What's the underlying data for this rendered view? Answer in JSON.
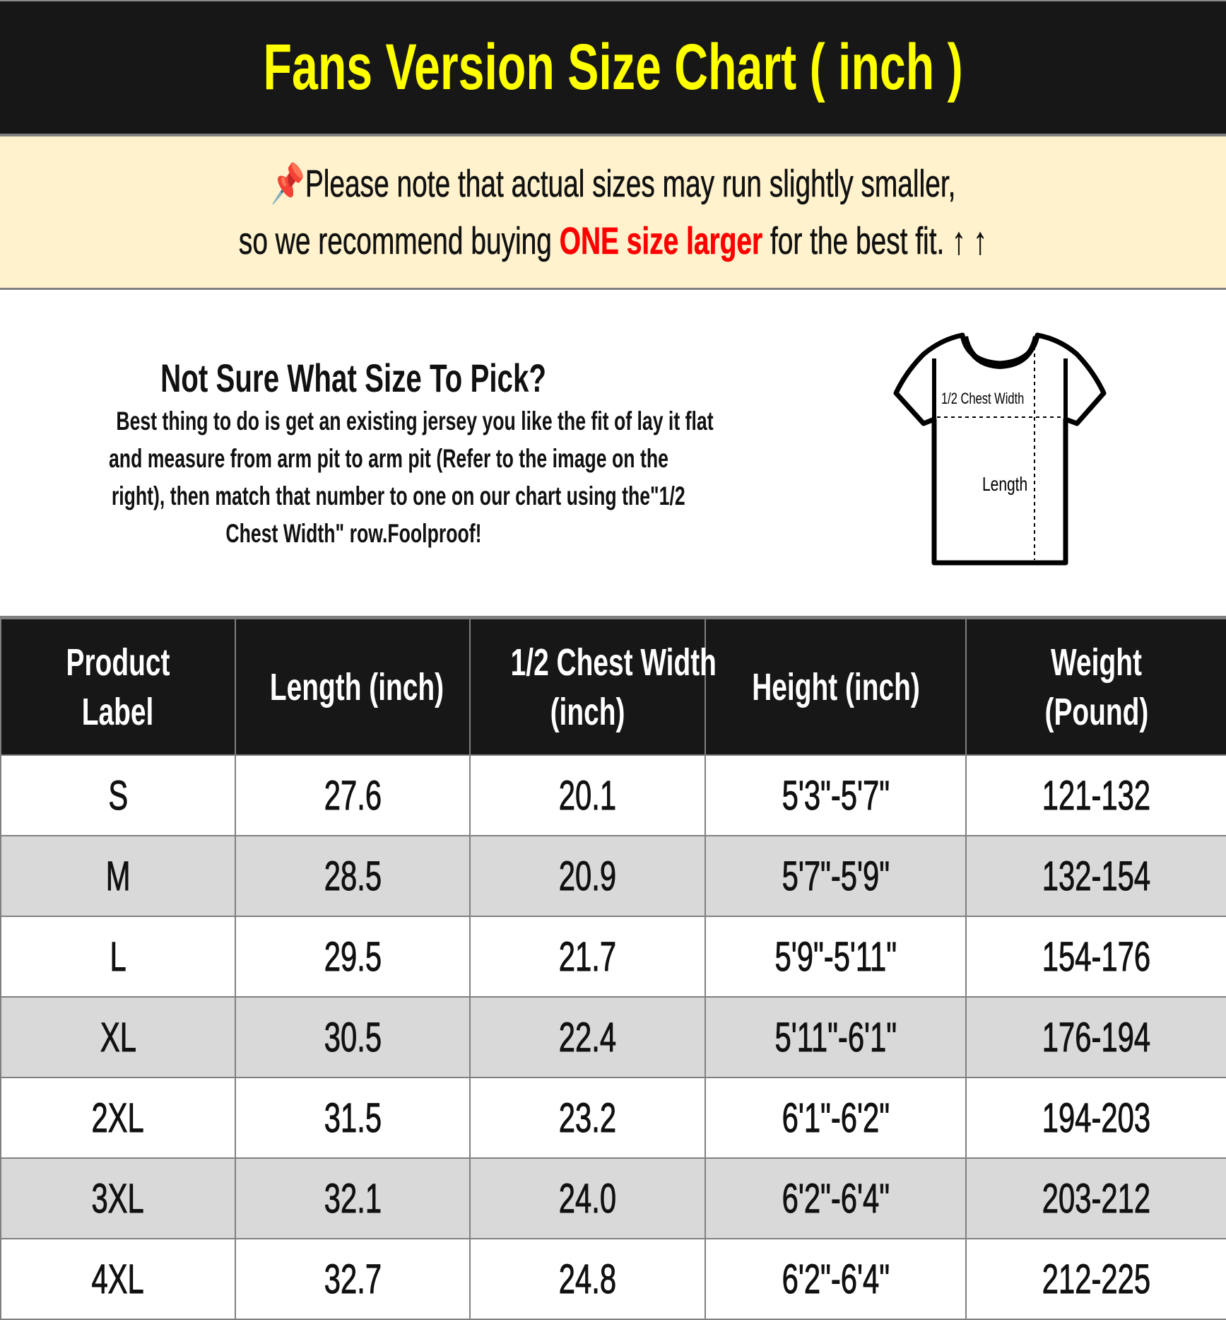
{
  "title": "Fans Version Size Chart ( inch )",
  "note": {
    "pin_icon": "pushpin-icon",
    "line1": "Please note that actual sizes may run slightly smaller,",
    "line2_pre": "so we recommend buying ",
    "line2_highlight": "ONE size larger",
    "line2_post": " for the best fit.",
    "arrows": "↑ ↑",
    "highlight_color": "#ff0000"
  },
  "guide": {
    "heading": "Not Sure What Size To Pick?",
    "lines": [
      "Best thing to do is get an existing jersey you like the fit of lay it flat",
      "and measure from arm pit to arm pit (Refer to the image on the",
      "right), then match that number to one on our chart using the\"1/2",
      "Chest Width\" row.Foolproof!"
    ],
    "diagram": {
      "chest_label": "1/2 Chest Width",
      "length_label": "Length"
    }
  },
  "table": {
    "headers": [
      [
        "Product",
        "Label"
      ],
      [
        "Length (inch)"
      ],
      [
        "1/2 Chest Width",
        "(inch)"
      ],
      [
        "Height (inch)"
      ],
      [
        "Weight",
        "(Pound)"
      ]
    ],
    "rows": [
      [
        "S",
        "27.6",
        "20.1",
        "5'3\"-5'7\"",
        "121-132"
      ],
      [
        "M",
        "28.5",
        "20.9",
        "5'7\"-5'9\"",
        "132-154"
      ],
      [
        "L",
        "29.5",
        "21.7",
        "5'9\"-5'11\"",
        "154-176"
      ],
      [
        "XL",
        "30.5",
        "22.4",
        "5'11\"-6'1\"",
        "176-194"
      ],
      [
        "2XL",
        "31.5",
        "23.2",
        "6'1\"-6'2\"",
        "194-203"
      ],
      [
        "3XL",
        "32.1",
        "24.0",
        "6'2\"-6'4\"",
        "203-212"
      ],
      [
        "4XL",
        "32.7",
        "24.8",
        "6'2\"-6'4\"",
        "212-225"
      ]
    ]
  },
  "colors": {
    "title": "#ffff00",
    "header_bg": "#171717",
    "note_bg": "#fff2cc",
    "alt_row": "#d9d9d9"
  }
}
